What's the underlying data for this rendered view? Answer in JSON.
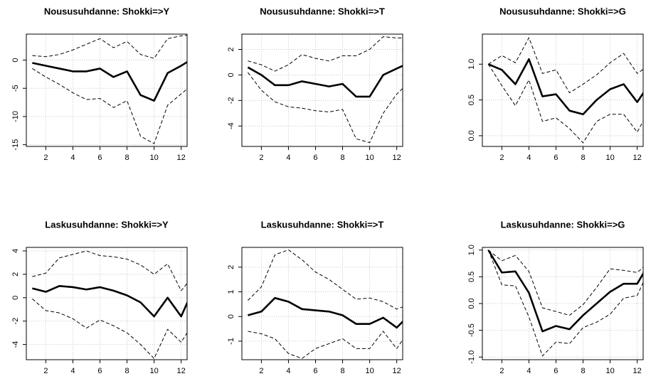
{
  "chart_data": [
    {
      "type": "line",
      "title": "Noususuhdanne: Shokki=>Y",
      "x": [
        1,
        2,
        3,
        4,
        5,
        6,
        7,
        8,
        9,
        10,
        11,
        12,
        13
      ],
      "xlim": [
        0.56,
        12.44
      ],
      "xticks": [
        2,
        4,
        6,
        8,
        10,
        12
      ],
      "ylim": [
        -15.3,
        4.6
      ],
      "yticks": [
        -15,
        -10,
        -5,
        0
      ],
      "grid": true,
      "series": [
        {
          "color": "#000000",
          "style": "solid",
          "values": [
            -0.5,
            -1,
            -1.5,
            -2,
            -2,
            -1.5,
            -3,
            -2,
            -6.2,
            -7.2,
            -2.3,
            -1,
            0.5
          ]
        },
        {
          "color": "#000000",
          "style": "dashed",
          "values": [
            0.8,
            0.6,
            1,
            1.8,
            2.8,
            3.8,
            2.2,
            3.3,
            1,
            0.3,
            3.8,
            4.3,
            4.5
          ]
        },
        {
          "color": "#000000",
          "style": "dashed",
          "values": [
            -1.5,
            -3,
            -4.3,
            -5.8,
            -7,
            -6.8,
            -8.4,
            -7.2,
            -13.5,
            -14.8,
            -8,
            -6,
            -4
          ]
        }
      ]
    },
    {
      "type": "line",
      "title": "Noususuhdanne: Shokki=>T",
      "x": [
        1,
        2,
        3,
        4,
        5,
        6,
        7,
        8,
        9,
        10,
        11,
        12,
        13
      ],
      "xlim": [
        0.56,
        12.44
      ],
      "xticks": [
        2,
        4,
        6,
        8,
        10,
        12
      ],
      "ylim": [
        -5.6,
        3.2
      ],
      "yticks": [
        -4,
        -2,
        0,
        2
      ],
      "grid": true,
      "series": [
        {
          "color": "#000000",
          "style": "solid",
          "values": [
            0.6,
            0,
            -0.8,
            -0.8,
            -0.5,
            -0.7,
            -0.9,
            -0.7,
            -1.7,
            -1.7,
            0,
            0.5,
            1.0
          ]
        },
        {
          "color": "#000000",
          "style": "dashed",
          "values": [
            1.1,
            0.8,
            0.3,
            0.8,
            1.6,
            1.3,
            1.1,
            1.5,
            1.5,
            2,
            3,
            2.9,
            2.9
          ]
        },
        {
          "color": "#000000",
          "style": "dashed",
          "values": [
            0.2,
            -1.2,
            -2.1,
            -2.5,
            -2.6,
            -2.8,
            -2.9,
            -2.7,
            -5,
            -5.3,
            -3,
            -1.5,
            -0.5
          ]
        }
      ]
    },
    {
      "type": "line",
      "title": "Noususuhdanne: Shokki=>G",
      "x": [
        1,
        2,
        3,
        4,
        5,
        6,
        7,
        8,
        9,
        10,
        11,
        12,
        13
      ],
      "xlim": [
        0.56,
        12.44
      ],
      "xticks": [
        2,
        4,
        6,
        8,
        10,
        12
      ],
      "ylim": [
        -0.15,
        1.42
      ],
      "yticks": [
        {
          "value": 0,
          "label": "0.0"
        },
        {
          "value": 0.5,
          "label": "0.5"
        },
        {
          "value": 1,
          "label": "1.0"
        }
      ],
      "grid": true,
      "series": [
        {
          "color": "#000000",
          "style": "solid",
          "values": [
            1.0,
            0.92,
            0.72,
            1.07,
            0.55,
            0.58,
            0.35,
            0.3,
            0.5,
            0.65,
            0.72,
            0.47,
            0.75
          ]
        },
        {
          "color": "#000000",
          "style": "dashed",
          "values": [
            1.0,
            1.12,
            1.02,
            1.37,
            0.87,
            0.92,
            0.6,
            0.72,
            0.85,
            1.02,
            1.15,
            0.87,
            1.0
          ]
        },
        {
          "color": "#000000",
          "style": "dashed",
          "values": [
            1.0,
            0.7,
            0.42,
            0.78,
            0.2,
            0.25,
            0.1,
            -0.1,
            0.2,
            0.3,
            0.3,
            0.05,
            0.4
          ]
        }
      ]
    },
    {
      "type": "line",
      "title": "Laskusuhdanne: Shokki=>Y",
      "x": [
        1,
        2,
        3,
        4,
        5,
        6,
        7,
        8,
        9,
        10,
        11,
        12,
        13
      ],
      "xlim": [
        0.56,
        12.44
      ],
      "xticks": [
        2,
        4,
        6,
        8,
        10,
        12
      ],
      "ylim": [
        -5.3,
        4.3
      ],
      "yticks": [
        -4,
        -2,
        0,
        2,
        4
      ],
      "grid": true,
      "series": [
        {
          "color": "#000000",
          "style": "solid",
          "values": [
            0.8,
            0.5,
            1,
            0.9,
            0.7,
            0.9,
            0.6,
            0.2,
            -0.4,
            -1.6,
            0,
            -1.6,
            1
          ]
        },
        {
          "color": "#000000",
          "style": "dashed",
          "values": [
            1.8,
            2.1,
            3.4,
            3.7,
            4,
            3.6,
            3.5,
            3.3,
            2.8,
            2,
            2.9,
            0.6,
            2
          ]
        },
        {
          "color": "#000000",
          "style": "dashed",
          "values": [
            -0.1,
            -1.1,
            -1.3,
            -1.8,
            -2.6,
            -1.9,
            -2.4,
            -3,
            -4,
            -5.2,
            -2.7,
            -3.8,
            -2
          ]
        }
      ]
    },
    {
      "type": "line",
      "title": "Laskusuhdanne: Shokki=>T",
      "x": [
        1,
        2,
        3,
        4,
        5,
        6,
        7,
        8,
        9,
        10,
        11,
        12,
        13
      ],
      "xlim": [
        0.56,
        12.44
      ],
      "xticks": [
        2,
        4,
        6,
        8,
        10,
        12
      ],
      "ylim": [
        -1.75,
        2.8
      ],
      "yticks": [
        -1,
        0,
        1,
        2
      ],
      "grid": true,
      "series": [
        {
          "color": "#000000",
          "style": "solid",
          "values": [
            0.05,
            0.2,
            0.75,
            0.6,
            0.3,
            0.25,
            0.2,
            0.05,
            -0.3,
            -0.3,
            -0.05,
            -0.45,
            0.1
          ]
        },
        {
          "color": "#000000",
          "style": "dashed",
          "values": [
            0.65,
            1.2,
            2.5,
            2.7,
            2.3,
            1.8,
            1.5,
            1.1,
            0.7,
            0.75,
            0.6,
            0.3,
            0.5
          ]
        },
        {
          "color": "#000000",
          "style": "dashed",
          "values": [
            -0.6,
            -0.7,
            -0.9,
            -1.5,
            -1.7,
            -1.3,
            -1.1,
            -0.9,
            -1.3,
            -1.3,
            -0.6,
            -1.3,
            -0.5
          ]
        }
      ]
    },
    {
      "type": "line",
      "title": "Laskusuhdanne: Shokki=>G",
      "x": [
        1,
        2,
        3,
        4,
        5,
        6,
        7,
        8,
        9,
        10,
        11,
        12,
        13
      ],
      "xlim": [
        0.56,
        12.44
      ],
      "xticks": [
        2,
        4,
        6,
        8,
        10,
        12
      ],
      "ylim": [
        -1.05,
        1.05
      ],
      "yticks": [
        {
          "value": -1,
          "label": "-1.0"
        },
        {
          "value": -0.5,
          "label": "-0.5"
        },
        {
          "value": 0,
          "label": "0.0"
        },
        {
          "value": 0.5,
          "label": "0.5"
        },
        {
          "value": 1,
          "label": "1.0"
        }
      ],
      "grid": true,
      "series": [
        {
          "color": "#000000",
          "style": "solid",
          "values": [
            1,
            0.58,
            0.6,
            0.2,
            -0.52,
            -0.42,
            -0.48,
            -0.22,
            0.0,
            0.22,
            0.37,
            0.37,
            0.8
          ]
        },
        {
          "color": "#000000",
          "style": "dashed",
          "values": [
            1,
            0.8,
            0.9,
            0.6,
            -0.08,
            -0.15,
            -0.22,
            -0.02,
            0.3,
            0.65,
            0.62,
            0.58,
            0.8
          ]
        },
        {
          "color": "#000000",
          "style": "dashed",
          "values": [
            1,
            0.35,
            0.33,
            -0.25,
            -0.98,
            -0.72,
            -0.75,
            -0.45,
            -0.35,
            -0.2,
            0.1,
            0.15,
            0.7
          ]
        }
      ]
    }
  ]
}
